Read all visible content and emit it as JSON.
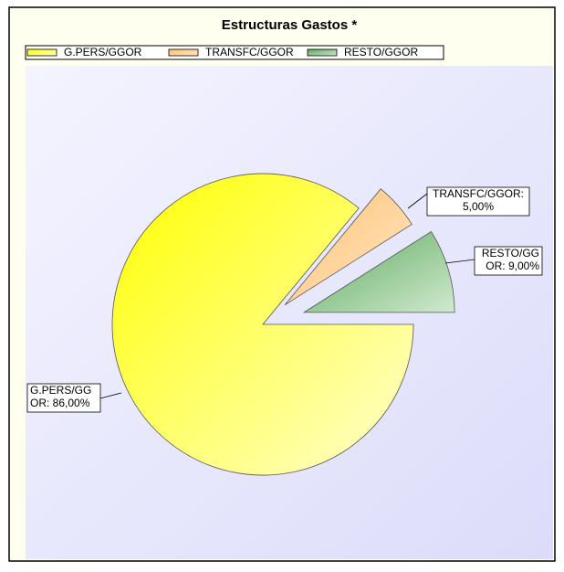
{
  "chart_data": {
    "type": "pie",
    "title": "Estructuras Gastos *",
    "categories": [
      "G.PERS/GGOR",
      "TRANSFC/GGOR",
      "RESTO/GGOR"
    ],
    "values": [
      86,
      5,
      9
    ],
    "value_labels": [
      [
        "G.PERS/GG",
        "OR: 86,00%"
      ],
      [
        "TRANSFC/GGOR:",
        "5,00%"
      ],
      [
        "RESTO/GG",
        "OR: 9,00%"
      ]
    ],
    "colors": [
      [
        "#ffff00",
        "#ffffd0"
      ],
      [
        "#ffc070",
        "#ffe8c8"
      ],
      [
        "#5aa85a",
        "#d0ead0"
      ]
    ],
    "explode": [
      false,
      true,
      true
    ],
    "legend": "top"
  }
}
